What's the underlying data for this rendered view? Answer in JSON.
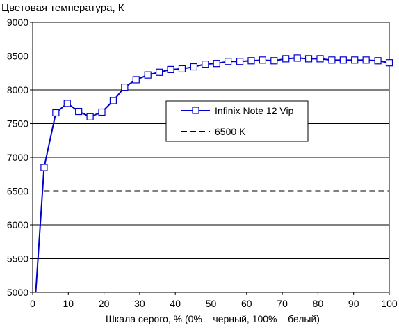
{
  "chart_data": {
    "type": "line",
    "title": "Цветовая температура, К",
    "xlabel": "Шкала серого, % (0% – черный, 100% – белый)",
    "ylabel": "",
    "xlim": [
      0,
      100
    ],
    "ylim": [
      5000,
      9000
    ],
    "x_ticks": [
      0,
      10,
      20,
      30,
      40,
      50,
      60,
      70,
      80,
      90,
      100
    ],
    "y_ticks": [
      5000,
      5500,
      6000,
      6500,
      7000,
      7500,
      8000,
      8500,
      9000
    ],
    "x_tick_labels": [
      "0",
      "10",
      "20",
      "30",
      "40",
      "50",
      "60",
      "70",
      "80",
      "90",
      "100"
    ],
    "y_tick_labels": [
      "5000",
      "5500",
      "6000",
      "6500",
      "7000",
      "7500",
      "8000",
      "8500",
      "9000"
    ],
    "grid": "horizontal",
    "legend_position": "center-right",
    "series": [
      {
        "name": "Infinix Note 12 Vip",
        "color": "#0000cc",
        "style": "solid",
        "marker": "square",
        "x": [
          3.2,
          6.5,
          9.7,
          12.9,
          16.1,
          19.4,
          22.6,
          25.8,
          29.0,
          32.3,
          35.5,
          38.7,
          41.9,
          45.2,
          48.4,
          51.6,
          54.8,
          58.1,
          61.3,
          64.5,
          67.7,
          71.0,
          74.2,
          77.4,
          80.6,
          83.9,
          87.1,
          90.3,
          93.5,
          96.8,
          100
        ],
        "y": [
          6850,
          7660,
          7800,
          7680,
          7600,
          7670,
          7840,
          8040,
          8150,
          8220,
          8260,
          8300,
          8310,
          8340,
          8380,
          8390,
          8420,
          8420,
          8430,
          8440,
          8430,
          8460,
          8470,
          8460,
          8460,
          8440,
          8440,
          8440,
          8440,
          8430,
          8400
        ],
        "extra_segment": {
          "x": [
            0.8,
            3.2
          ],
          "y": [
            4950,
            6850
          ]
        }
      },
      {
        "name": "6500 K",
        "color": "#000000",
        "style": "dashed",
        "marker": "none",
        "x": [
          3.2,
          100
        ],
        "y": [
          6500,
          6500
        ]
      }
    ]
  }
}
